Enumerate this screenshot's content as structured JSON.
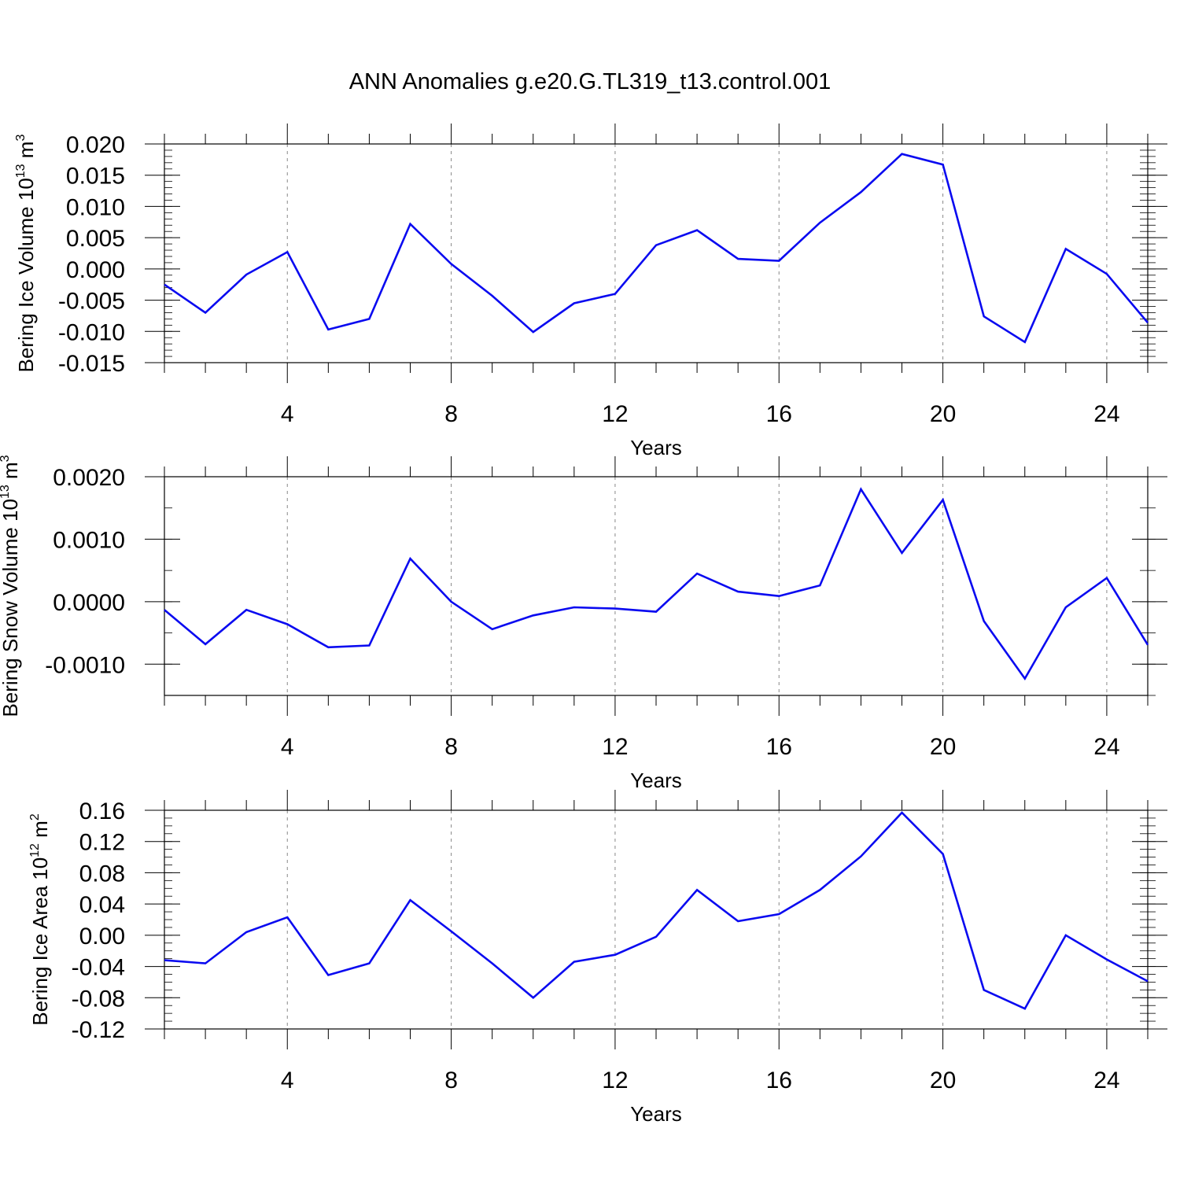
{
  "title": "ANN Anomalies g.e20.G.TL319_t13.control.001",
  "colors": {
    "line": "#0a0af0",
    "axis": "#000000",
    "grid": "#888888"
  },
  "chart_data": [
    {
      "type": "line",
      "title": "ANN Anomalies g.e20.G.TL319_t13.control.001",
      "ylabel": "Bering Ice Volume 10",
      "ylabel_sup": "13",
      "ylabel_unit": "m",
      "ylabel_unit_sup": "3",
      "xlabel": "Years",
      "xlim": [
        1,
        25
      ],
      "ylim": [
        -0.015,
        0.02
      ],
      "x_ticks": [
        4,
        8,
        12,
        16,
        20,
        24
      ],
      "x_tick_labels": [
        "4",
        "8",
        "12",
        "16",
        "20",
        "24"
      ],
      "y_ticks": [
        -0.015,
        -0.01,
        -0.005,
        0.0,
        0.005,
        0.01,
        0.015,
        0.02
      ],
      "y_tick_labels": [
        "-0.015",
        "-0.010",
        "-0.005",
        "0.000",
        "0.005",
        "0.010",
        "0.015",
        "0.020"
      ],
      "y_minor_step": 0.001,
      "grid": "x dashed",
      "x": [
        1,
        2,
        3,
        4,
        5,
        6,
        7,
        8,
        9,
        10,
        11,
        12,
        13,
        14,
        15,
        16,
        17,
        18,
        19,
        20,
        21,
        22,
        23,
        24,
        25
      ],
      "values": [
        -0.0025,
        -0.007,
        -0.0009,
        0.0027,
        -0.0097,
        -0.008,
        0.0072,
        0.0008,
        -0.0043,
        -0.0101,
        -0.0055,
        -0.004,
        0.0038,
        0.0062,
        0.0016,
        0.0013,
        0.0074,
        0.0123,
        0.0184,
        0.0167,
        -0.0076,
        -0.0117,
        0.0032,
        -0.0008,
        -0.0086
      ]
    },
    {
      "type": "line",
      "ylabel": "Bering Snow Volume 10",
      "ylabel_sup": "13",
      "ylabel_unit": "m",
      "ylabel_unit_sup": "3",
      "xlabel": "Years",
      "xlim": [
        1,
        25
      ],
      "ylim": [
        -0.0015,
        0.002
      ],
      "x_ticks": [
        4,
        8,
        12,
        16,
        20,
        24
      ],
      "x_tick_labels": [
        "4",
        "8",
        "12",
        "16",
        "20",
        "24"
      ],
      "y_ticks": [
        -0.001,
        0.0,
        0.001,
        0.002
      ],
      "y_tick_labels": [
        "-0.0010",
        "0.0000",
        "0.0010",
        "0.0020"
      ],
      "y_minor_step": 0.0005,
      "grid": "x dashed",
      "x": [
        1,
        2,
        3,
        4,
        5,
        6,
        7,
        8,
        9,
        10,
        11,
        12,
        13,
        14,
        15,
        16,
        17,
        18,
        19,
        20,
        21,
        22,
        23,
        24,
        25
      ],
      "values": [
        -0.00013,
        -0.00068,
        -0.00013,
        -0.00036,
        -0.00073,
        -0.0007,
        0.00069,
        0.0,
        -0.00044,
        -0.00022,
        -9e-05,
        -0.00011,
        -0.00016,
        0.00045,
        0.00016,
        9e-05,
        0.00026,
        0.0018,
        0.00078,
        0.00163,
        -0.00031,
        -0.00123,
        -9e-05,
        0.00038,
        -0.00069
      ]
    },
    {
      "type": "line",
      "ylabel": "Bering Ice Area 10",
      "ylabel_sup": "12",
      "ylabel_unit": "m",
      "ylabel_unit_sup": "2",
      "xlabel": "Years",
      "xlim": [
        1,
        25
      ],
      "ylim": [
        -0.12,
        0.16
      ],
      "x_ticks": [
        4,
        8,
        12,
        16,
        20,
        24
      ],
      "x_tick_labels": [
        "4",
        "8",
        "12",
        "16",
        "20",
        "24"
      ],
      "y_ticks": [
        -0.12,
        -0.08,
        -0.04,
        0.0,
        0.04,
        0.08,
        0.12,
        0.16
      ],
      "y_tick_labels": [
        "-0.12",
        "-0.08",
        "-0.04",
        "0.00",
        "0.04",
        "0.08",
        "0.12",
        "0.16"
      ],
      "y_minor_step": 0.01,
      "grid": "x dashed",
      "x": [
        1,
        2,
        3,
        4,
        5,
        6,
        7,
        8,
        9,
        10,
        11,
        12,
        13,
        14,
        15,
        16,
        17,
        18,
        19,
        20,
        21,
        22,
        23,
        24,
        25
      ],
      "values": [
        -0.032,
        -0.036,
        0.004,
        0.023,
        -0.051,
        -0.036,
        0.045,
        0.005,
        -0.036,
        -0.08,
        -0.034,
        -0.025,
        -0.002,
        0.058,
        0.018,
        0.027,
        0.058,
        0.101,
        0.157,
        0.104,
        -0.07,
        -0.094,
        0.0,
        -0.031,
        -0.059
      ]
    }
  ]
}
